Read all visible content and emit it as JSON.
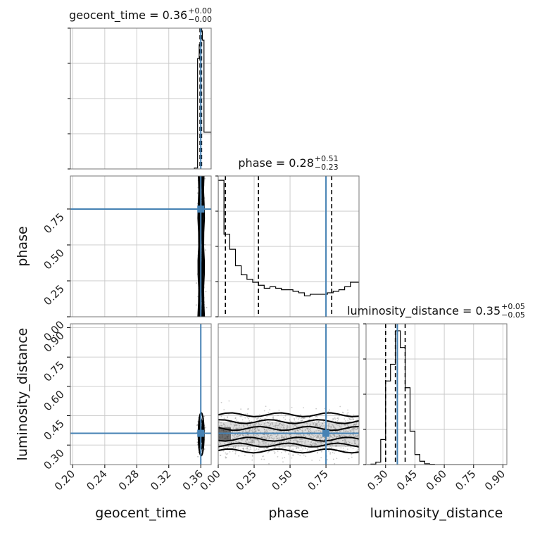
{
  "chart_data": {
    "type": "corner",
    "parameters": [
      "geocent_time",
      "phase",
      "luminosity_distance"
    ],
    "truths": {
      "geocent_time": 0.36,
      "phase": 0.75,
      "luminosity_distance": 0.36
    },
    "truth_color": "#4682b4",
    "titles": [
      {
        "param": "geocent_time",
        "label": "geocent_time = 0.36",
        "plus": "+0.00",
        "minus": "−0.00",
        "median": 0.36,
        "quantiles": [
          0.359,
          0.361
        ]
      },
      {
        "param": "phase",
        "label": "phase = 0.28",
        "plus": "+0.51",
        "minus": "−0.23",
        "median": 0.28,
        "quantiles": [
          0.05,
          0.79
        ]
      },
      {
        "param": "luminosity_distance",
        "label": "luminosity_distance = 0.35",
        "plus": "+0.05",
        "minus": "−0.05",
        "median": 0.35,
        "quantiles": [
          0.3,
          0.4
        ]
      }
    ],
    "axes": {
      "geocent_time": {
        "range": [
          0.197,
          0.373
        ],
        "ticks": [
          0.2,
          0.24,
          0.28,
          0.32,
          0.36
        ],
        "tick_labels": [
          "0.20",
          "0.24",
          "0.28",
          "0.32",
          "0.36"
        ]
      },
      "phase": {
        "range": [
          0.0,
          0.98
        ],
        "ticks": [
          0.0,
          0.25,
          0.5,
          0.75
        ],
        "tick_labels": [
          "0.00",
          "0.25",
          "0.50",
          "0.75"
        ]
      },
      "luminosity_distance": {
        "range": [
          0.2,
          0.92
        ],
        "ticks": [
          0.3,
          0.45,
          0.6,
          0.75,
          0.9
        ],
        "tick_labels": [
          "0.30",
          "0.45",
          "0.60",
          "0.75",
          "0.90"
        ]
      }
    },
    "histograms": {
      "geocent_time": {
        "bins": [
          0.352,
          0.356,
          0.358,
          0.36,
          0.362,
          0.364,
          0.373
        ],
        "counts": [
          1,
          120,
          135,
          150,
          140,
          40
        ]
      },
      "phase": {
        "edges": [
          0.0,
          0.04,
          0.08,
          0.12,
          0.16,
          0.2,
          0.24,
          0.28,
          0.32,
          0.36,
          0.4,
          0.44,
          0.48,
          0.52,
          0.56,
          0.6,
          0.64,
          0.68,
          0.72,
          0.76,
          0.8,
          0.84,
          0.88,
          0.92,
          0.98
        ],
        "counts": [
          0.91,
          0.55,
          0.45,
          0.34,
          0.28,
          0.25,
          0.23,
          0.21,
          0.19,
          0.2,
          0.19,
          0.18,
          0.18,
          0.17,
          0.16,
          0.14,
          0.15,
          0.15,
          0.15,
          0.16,
          0.17,
          0.18,
          0.2,
          0.23
        ]
      },
      "luminosity_distance": {
        "edges": [
          0.2,
          0.225,
          0.25,
          0.275,
          0.3,
          0.325,
          0.35,
          0.375,
          0.4,
          0.425,
          0.45,
          0.475,
          0.5,
          0.525,
          0.55,
          0.92
        ],
        "counts": [
          0,
          0.005,
          0.03,
          0.3,
          1.0,
          1.2,
          1.6,
          1.4,
          0.92,
          0.4,
          0.12,
          0.04,
          0.01,
          0.003,
          0
        ]
      }
    },
    "grid": true,
    "legend": "none"
  },
  "labels": {
    "geocent_time": "geocent_time",
    "phase": "phase",
    "luminosity_distance": "luminosity_distance"
  }
}
